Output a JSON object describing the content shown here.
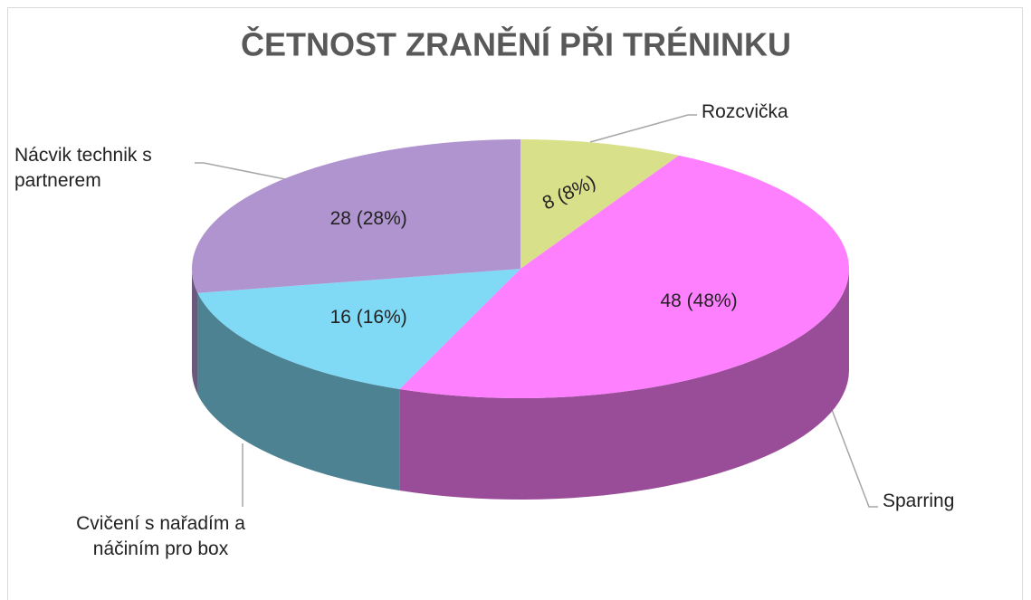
{
  "chart_data": {
    "type": "pie",
    "title": "ČETNOST ZRANĚNÍ PŘI TRÉNINKU",
    "categories": [
      "Rozcvička",
      "Sparring",
      "Cvičení s nařadím a náčiním pro box",
      "Nácvik technik s partnerem"
    ],
    "values": [
      8,
      48,
      16,
      28
    ],
    "value_labels": [
      "8 (8%)",
      "48 (48%)",
      "16 (16%)",
      "28 (28%)"
    ],
    "colors": [
      "#d9e08a",
      "#ff80ff",
      "#80d9f5",
      "#b094d0"
    ]
  }
}
